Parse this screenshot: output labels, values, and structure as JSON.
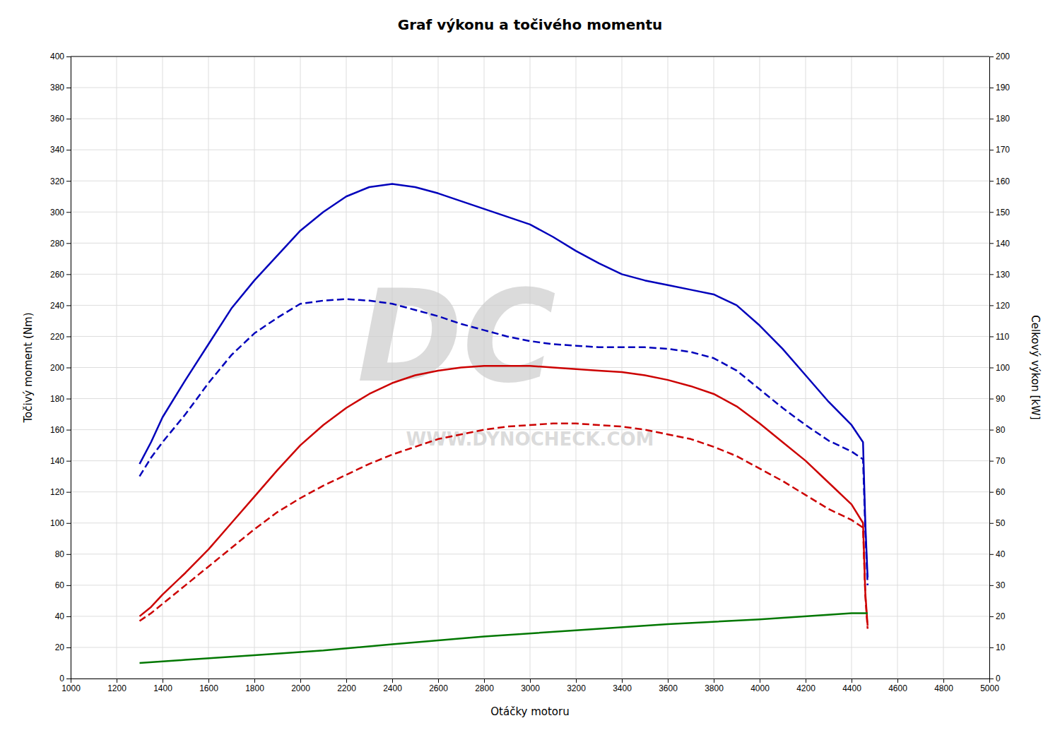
{
  "chart_data": {
    "type": "line",
    "title": "Graf výkonu a točivého momentu",
    "xlabel": "Otáčky motoru",
    "ylabel": "Točivý moment (Nm)",
    "y2label": "Celkový výkon [kW]",
    "xlim": [
      1000,
      5000
    ],
    "ylim": [
      0,
      400
    ],
    "y2lim": [
      0,
      200
    ],
    "xticks": [
      1000,
      1200,
      1400,
      1600,
      1800,
      2000,
      2200,
      2400,
      2600,
      2800,
      3000,
      3200,
      3400,
      3600,
      3800,
      4000,
      4200,
      4400,
      4600,
      4800,
      5000
    ],
    "yticks": [
      0,
      20,
      40,
      60,
      80,
      100,
      120,
      140,
      160,
      180,
      200,
      220,
      240,
      260,
      280,
      300,
      320,
      340,
      360,
      380,
      400
    ],
    "y2ticks": [
      0,
      10,
      20,
      30,
      40,
      50,
      60,
      70,
      80,
      90,
      100,
      110,
      120,
      130,
      140,
      150,
      160,
      170,
      180,
      190,
      200
    ],
    "grid": true,
    "annotations": [
      {
        "text": "DC"
      },
      {
        "text": "WWW.DYNOCHECK.COM"
      }
    ],
    "series": [
      {
        "color": "#0000bb",
        "line_style": "solid",
        "x": [
          1300,
          1350,
          1400,
          1500,
          1600,
          1700,
          1800,
          1900,
          2000,
          2100,
          2200,
          2300,
          2400,
          2500,
          2600,
          2700,
          2800,
          2900,
          3000,
          3100,
          3200,
          3300,
          3400,
          3500,
          3600,
          3700,
          3800,
          3900,
          4000,
          4100,
          4200,
          4300,
          4400,
          4450,
          4460,
          4470
        ],
        "values": [
          138,
          152,
          168,
          192,
          215,
          238,
          256,
          272,
          288,
          300,
          310,
          316,
          318,
          316,
          312,
          307,
          302,
          297,
          292,
          284,
          275,
          267,
          260,
          256,
          253,
          250,
          247,
          240,
          227,
          212,
          195,
          178,
          163,
          152,
          100,
          65
        ]
      },
      {
        "color": "#0000bb",
        "line_style": "dashed",
        "x": [
          1300,
          1350,
          1400,
          1500,
          1600,
          1700,
          1800,
          1900,
          2000,
          2100,
          2200,
          2300,
          2400,
          2500,
          2600,
          2700,
          2800,
          2900,
          3000,
          3100,
          3200,
          3300,
          3400,
          3500,
          3600,
          3700,
          3800,
          3900,
          4000,
          4100,
          4200,
          4300,
          4400,
          4450,
          4460,
          4470
        ],
        "values": [
          130,
          142,
          152,
          170,
          190,
          208,
          222,
          232,
          241,
          243,
          244,
          243,
          241,
          237,
          233,
          228,
          224,
          220,
          217,
          215,
          214,
          213,
          213,
          213,
          212,
          210,
          206,
          198,
          186,
          174,
          163,
          153,
          146,
          141,
          95,
          60
        ]
      },
      {
        "color": "#cc0000",
        "line_style": "solid",
        "x": [
          1300,
          1350,
          1400,
          1500,
          1600,
          1700,
          1800,
          1900,
          2000,
          2100,
          2200,
          2300,
          2400,
          2500,
          2600,
          2700,
          2800,
          2900,
          3000,
          3100,
          3200,
          3300,
          3400,
          3500,
          3600,
          3700,
          3800,
          3900,
          4000,
          4100,
          4200,
          4300,
          4400,
          4450,
          4460,
          4470
        ],
        "values": [
          40,
          46,
          54,
          68,
          83,
          100,
          117,
          134,
          150,
          163,
          174,
          183,
          190,
          195,
          198,
          200,
          201,
          201,
          201,
          200,
          199,
          198,
          197,
          195,
          192,
          188,
          183,
          175,
          164,
          152,
          140,
          126,
          112,
          100,
          55,
          34
        ]
      },
      {
        "color": "#cc0000",
        "line_style": "dashed",
        "x": [
          1300,
          1350,
          1400,
          1500,
          1600,
          1700,
          1800,
          1900,
          2000,
          2100,
          2200,
          2300,
          2400,
          2500,
          2600,
          2700,
          2800,
          2900,
          3000,
          3100,
          3200,
          3300,
          3400,
          3500,
          3600,
          3700,
          3800,
          3900,
          4000,
          4100,
          4200,
          4300,
          4400,
          4450,
          4460,
          4470
        ],
        "values": [
          37,
          42,
          48,
          60,
          72,
          84,
          96,
          107,
          116,
          124,
          131,
          138,
          144,
          149,
          154,
          157,
          160,
          162,
          163,
          164,
          164,
          163,
          162,
          160,
          157,
          154,
          149,
          143,
          135,
          127,
          118,
          109,
          102,
          97,
          53,
          32
        ]
      },
      {
        "color": "#007700",
        "line_style": "solid",
        "x": [
          1300,
          1500,
          1800,
          2100,
          2400,
          2800,
          3200,
          3600,
          4000,
          4400,
          4470
        ],
        "values": [
          10,
          12,
          15,
          18,
          22,
          27,
          31,
          35,
          38,
          42,
          42
        ]
      }
    ]
  }
}
